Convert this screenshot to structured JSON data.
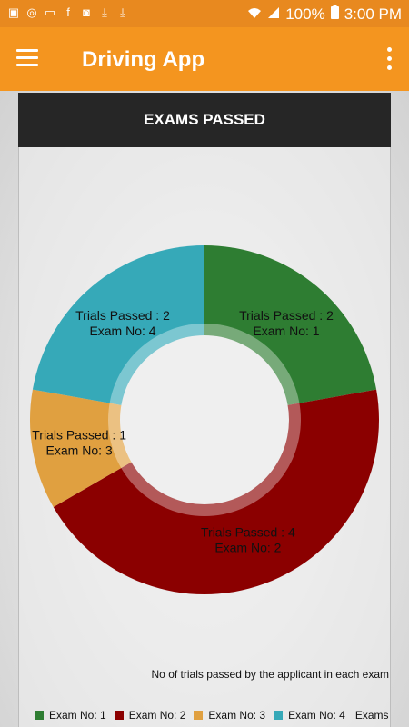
{
  "status_bar": {
    "battery": "100%",
    "time": "3:00 PM"
  },
  "app_bar": {
    "title": "Driving App"
  },
  "card": {
    "header": "EXAMS PASSED",
    "description": "No of trials passed by the applicant in each exam",
    "legend_title": "Exams"
  },
  "colors": {
    "accent": "#f4951f",
    "status_bar": "#e8891f",
    "header_bg": "#262626"
  },
  "chart_data": {
    "type": "pie",
    "hole": true,
    "description": "No of trials passed by the applicant in each exam",
    "legend_title": "Exams",
    "categories": [
      "Exam No: 1",
      "Exam No: 2",
      "Exam No: 3",
      "Exam No: 4"
    ],
    "values": [
      2,
      4,
      1,
      2
    ],
    "colors": [
      "#2e7d32",
      "#8b0000",
      "#e0a040",
      "#36a9b8"
    ],
    "slice_labels": [
      [
        "Trials Passed : 2",
        "Exam No: 1"
      ],
      [
        "Trials Passed : 4",
        "Exam No: 2"
      ],
      [
        "Trials Passed : 1",
        "Exam No: 3"
      ],
      [
        "Trials Passed : 2",
        "Exam No: 4"
      ]
    ]
  }
}
